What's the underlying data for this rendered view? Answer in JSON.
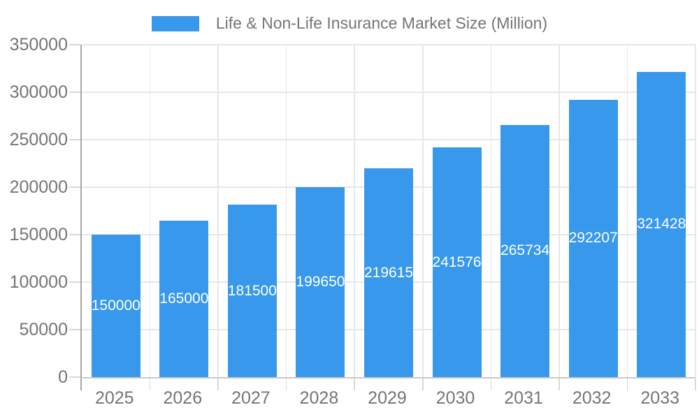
{
  "chart_data": {
    "type": "bar",
    "title": "Life & Non-Life Insurance Market Size (Million)",
    "legend_position": "top",
    "legend": [
      {
        "label": "Life & Non-Life Insurance Market Size (Million)",
        "color": "#3899ec"
      }
    ],
    "categories": [
      "2025",
      "2026",
      "2027",
      "2028",
      "2029",
      "2030",
      "2031",
      "2032",
      "2033"
    ],
    "series": [
      {
        "name": "Life & Non-Life Insurance Market Size (Million)",
        "values": [
          150000,
          165000,
          181500,
          199650,
          219615,
          241576,
          265734,
          292207,
          321428
        ]
      }
    ],
    "bar_labels": [
      "150000",
      "165000",
      "181500",
      "199650",
      "219615",
      "241576",
      "265734",
      "292207",
      "321428"
    ],
    "xlabel": "",
    "ylabel": "",
    "ylim": [
      0,
      350000
    ],
    "ytick_step": 50000,
    "ytick_labels": [
      "0",
      "50000",
      "100000",
      "150000",
      "200000",
      "250000",
      "300000",
      "350000"
    ],
    "grid": true,
    "colors": {
      "bar": "#3899ec",
      "bar_label": "#ffffff",
      "axis_text": "#757575",
      "grid_line": "#e7e7e7",
      "y_axis_line": "#a6a6a6",
      "baseline": "#c9c9c9",
      "background": "#ffffff"
    }
  }
}
